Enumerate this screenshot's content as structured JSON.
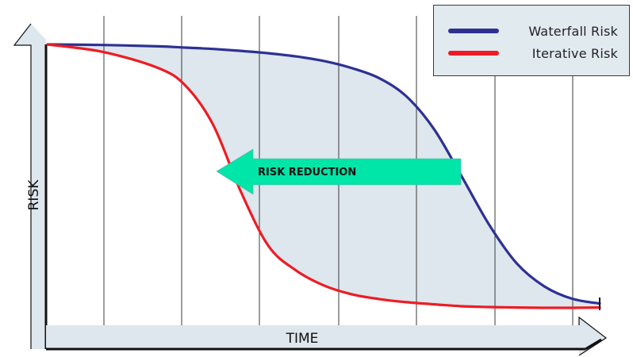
{
  "chart_data": {
    "type": "line",
    "title": "",
    "xlabel": "TIME",
    "ylabel": "RISK",
    "xlim": [
      0,
      100
    ],
    "ylim": [
      0,
      100
    ],
    "grid": "vertical",
    "legend_position": "top-right",
    "x": [
      0,
      10,
      20,
      25,
      30,
      35,
      40,
      45,
      50,
      55,
      60,
      65,
      70,
      75,
      80,
      85,
      90,
      95,
      100
    ],
    "series": [
      {
        "name": "Waterfall Risk",
        "color": "#2e3192",
        "values": [
          100,
          99.8,
          99.3,
          98.8,
          98.3,
          97.6,
          96.7,
          95.5,
          93.8,
          91.2,
          87.4,
          80.5,
          68.2,
          50.5,
          32.3,
          17.8,
          9.2,
          4.6,
          2.8
        ]
      },
      {
        "name": "Iterative Risk",
        "color": "#ed1c24",
        "values": [
          100,
          97.2,
          91.2,
          84.5,
          69.8,
          44.8,
          24.4,
          15.2,
          9.6,
          6.3,
          4.5,
          3.3,
          2.5,
          1.8,
          1.5,
          1.3,
          1.2,
          1.2,
          1.3
        ]
      }
    ],
    "annotations": [
      {
        "text": "RISK REDUCTION",
        "shape": "arrow-left",
        "color": "#00e5a8"
      }
    ],
    "colors": {
      "gap_fill": "#dde7ed",
      "axis_fill": "#dde7ed",
      "axis_stroke": "#111111",
      "grid": "#3a3a3a"
    }
  }
}
